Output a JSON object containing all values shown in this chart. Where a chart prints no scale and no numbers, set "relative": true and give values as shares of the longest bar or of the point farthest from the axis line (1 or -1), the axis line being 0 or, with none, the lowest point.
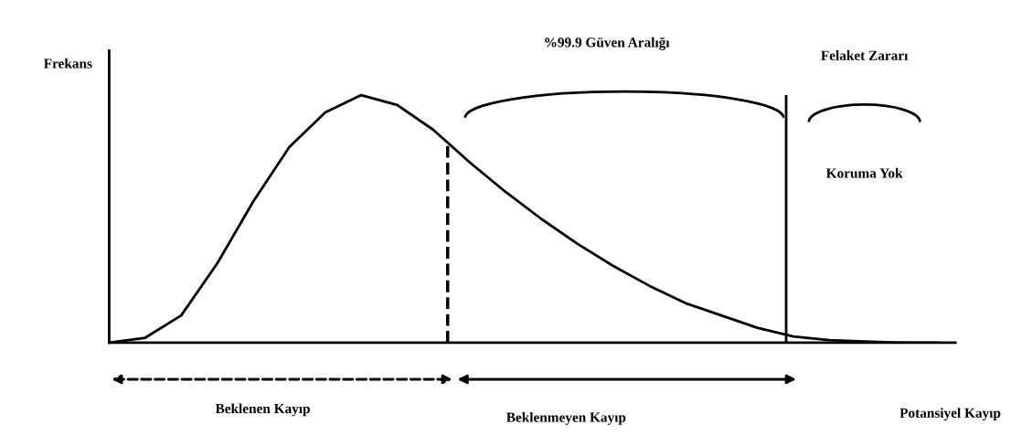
{
  "chart_data": {
    "type": "line",
    "relative": true,
    "xlabel": "Potansiyel Kayıp",
    "ylabel": "Frekans",
    "categories": [
      null,
      null,
      null,
      null,
      null,
      null,
      null,
      null,
      null,
      null,
      null,
      null,
      null,
      null,
      null,
      null,
      null,
      null,
      null,
      null,
      null,
      null,
      null,
      null
    ],
    "series": [
      {
        "color": "#000000",
        "values": [
          0,
          0.02,
          0.11,
          0.32,
          0.57,
          0.79,
          0.93,
          1.0,
          0.96,
          0.86,
          0.73,
          0.61,
          0.5,
          0.4,
          0.31,
          0.23,
          0.16,
          0.11,
          0.06,
          0.025,
          0.01,
          0.005,
          0,
          0
        ]
      }
    ],
    "annotations": [
      "%99.9 Güven Aralığı",
      "Felaket Zararı",
      "Koruma Yok",
      "Beklenen Kayıp",
      "Beklenmeyen Kayıp"
    ],
    "marker": "none",
    "line_style": "solid",
    "grid": false,
    "legend": false
  }
}
